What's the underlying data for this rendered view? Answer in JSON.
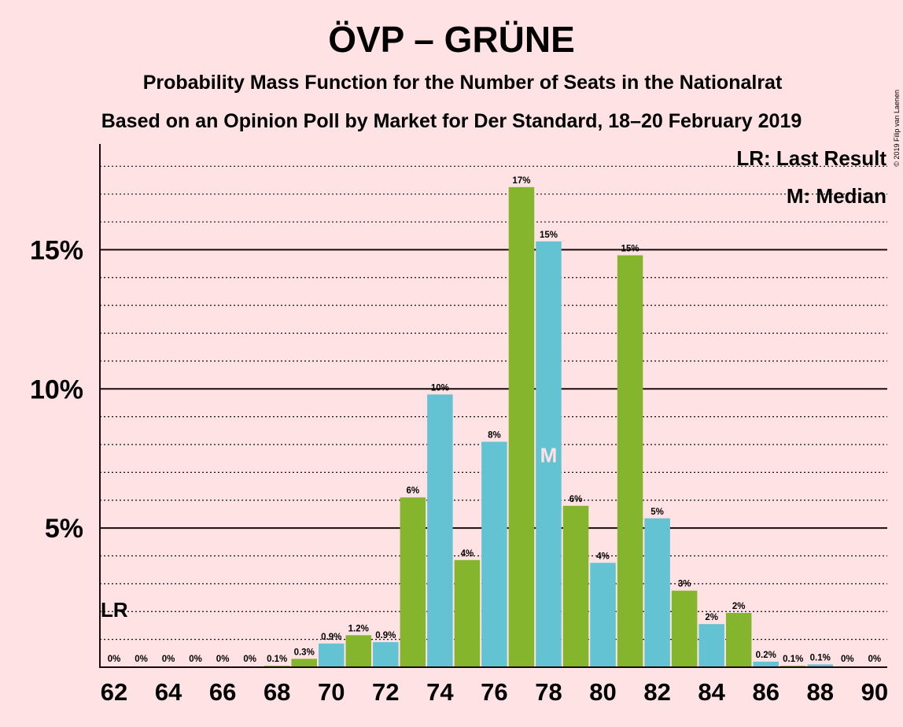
{
  "chart_data": {
    "type": "bar",
    "title": "ÖVP – GRÜNE",
    "subtitle": "Probability Mass Function for the Number of Seats in the Nationalrat",
    "subtitle2": "Based on an Opinion Poll by Market for Der Standard, 18–20 February 2019",
    "copyright": "© 2019 Filip van Laenen",
    "legend": {
      "lr": "LR: Last Result",
      "m": "M: Median",
      "position": "top-right"
    },
    "last_result_marker": {
      "label": "LR",
      "seats": 62
    },
    "median_marker": {
      "label": "M",
      "seats": 78
    },
    "ylim": [
      0,
      18.8
    ],
    "y_ticks": [
      {
        "value": 5,
        "label": "5%"
      },
      {
        "value": 10,
        "label": "10%"
      },
      {
        "value": 15,
        "label": "15%"
      }
    ],
    "x_tick_labels": [
      "62",
      "64",
      "66",
      "68",
      "70",
      "72",
      "74",
      "76",
      "78",
      "80",
      "82",
      "84",
      "86",
      "88",
      "90"
    ],
    "colors": {
      "green": "#85B52D",
      "blue": "#63C3D3",
      "background": "#FFE2E4",
      "axis": "#1a0a0a"
    },
    "bars": [
      {
        "seats": 62,
        "value": 0,
        "label": "0%",
        "color": "green"
      },
      {
        "seats": 63,
        "value": 0,
        "label": "0%",
        "color": "blue"
      },
      {
        "seats": 64,
        "value": 0,
        "label": "0%",
        "color": "green"
      },
      {
        "seats": 65,
        "value": 0,
        "label": "0%",
        "color": "blue"
      },
      {
        "seats": 66,
        "value": 0,
        "label": "0%",
        "color": "green"
      },
      {
        "seats": 67,
        "value": 0,
        "label": "0%",
        "color": "blue"
      },
      {
        "seats": 68,
        "value": 0.05,
        "label": "0.1%",
        "color": "green"
      },
      {
        "seats": 69,
        "value": 0.3,
        "label": "0.3%",
        "color": "green"
      },
      {
        "seats": 70,
        "value": 0.85,
        "label": "0.9%",
        "color": "blue"
      },
      {
        "seats": 71,
        "value": 1.15,
        "label": "1.2%",
        "color": "green"
      },
      {
        "seats": 72,
        "value": 0.9,
        "label": "0.9%",
        "color": "blue"
      },
      {
        "seats": 73,
        "value": 6.1,
        "label": "6%",
        "color": "green"
      },
      {
        "seats": 74,
        "value": 9.8,
        "label": "10%",
        "color": "blue"
      },
      {
        "seats": 75,
        "value": 3.85,
        "label": "4%",
        "color": "green"
      },
      {
        "seats": 76,
        "value": 8.1,
        "label": "8%",
        "color": "blue"
      },
      {
        "seats": 77,
        "value": 17.25,
        "label": "17%",
        "color": "green"
      },
      {
        "seats": 78,
        "value": 15.3,
        "label": "15%",
        "color": "blue"
      },
      {
        "seats": 79,
        "value": 5.8,
        "label": "6%",
        "color": "green"
      },
      {
        "seats": 80,
        "value": 3.75,
        "label": "4%",
        "color": "blue"
      },
      {
        "seats": 81,
        "value": 14.8,
        "label": "15%",
        "color": "green"
      },
      {
        "seats": 82,
        "value": 5.35,
        "label": "5%",
        "color": "blue"
      },
      {
        "seats": 83,
        "value": 2.75,
        "label": "3%",
        "color": "green"
      },
      {
        "seats": 84,
        "value": 1.55,
        "label": "2%",
        "color": "blue"
      },
      {
        "seats": 85,
        "value": 1.95,
        "label": "2%",
        "color": "green"
      },
      {
        "seats": 86,
        "value": 0.2,
        "label": "0.2%",
        "color": "blue"
      },
      {
        "seats": 87,
        "value": 0.05,
        "label": "0.1%",
        "color": "green"
      },
      {
        "seats": 88,
        "value": 0.1,
        "label": "0.1%",
        "color": "blue"
      },
      {
        "seats": 89,
        "value": 0,
        "label": "0%",
        "color": "green"
      },
      {
        "seats": 90,
        "value": 0,
        "label": "0%",
        "color": "blue"
      }
    ]
  }
}
